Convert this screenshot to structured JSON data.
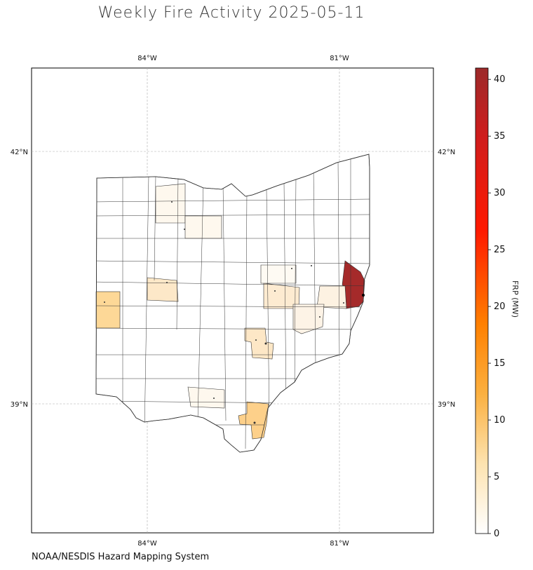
{
  "title": "Weekly Fire Activity 2025-05-11",
  "credit": "NOAA/NESDIS Hazard Mapping System",
  "map": {
    "lon_labels": [
      "84°W",
      "81°W"
    ],
    "lat_labels": [
      "42°N",
      "39°N"
    ],
    "region": "Ohio counties"
  },
  "colorbar": {
    "label": "FRP (MW)",
    "ticks": [
      "0",
      "5",
      "10",
      "15",
      "20",
      "25",
      "30",
      "35",
      "40"
    ],
    "min": 0,
    "max": 41,
    "colormap": [
      "#ffffff",
      "#fde3b0",
      "#fbb040",
      "#ff7a00",
      "#ff1a00",
      "#c21c1c",
      "#9c2a2a"
    ]
  },
  "highlighted_counties": [
    {
      "frp": 41,
      "color": "#a52a2a"
    },
    {
      "frp": 7,
      "color": "#fdd897"
    },
    {
      "frp": 6,
      "color": "#fdd08a"
    },
    {
      "frp": 3,
      "color": "#fde8c8"
    },
    {
      "frp": 2,
      "color": "#fdf0de"
    },
    {
      "frp": 1,
      "color": "#fef8ee"
    }
  ]
}
